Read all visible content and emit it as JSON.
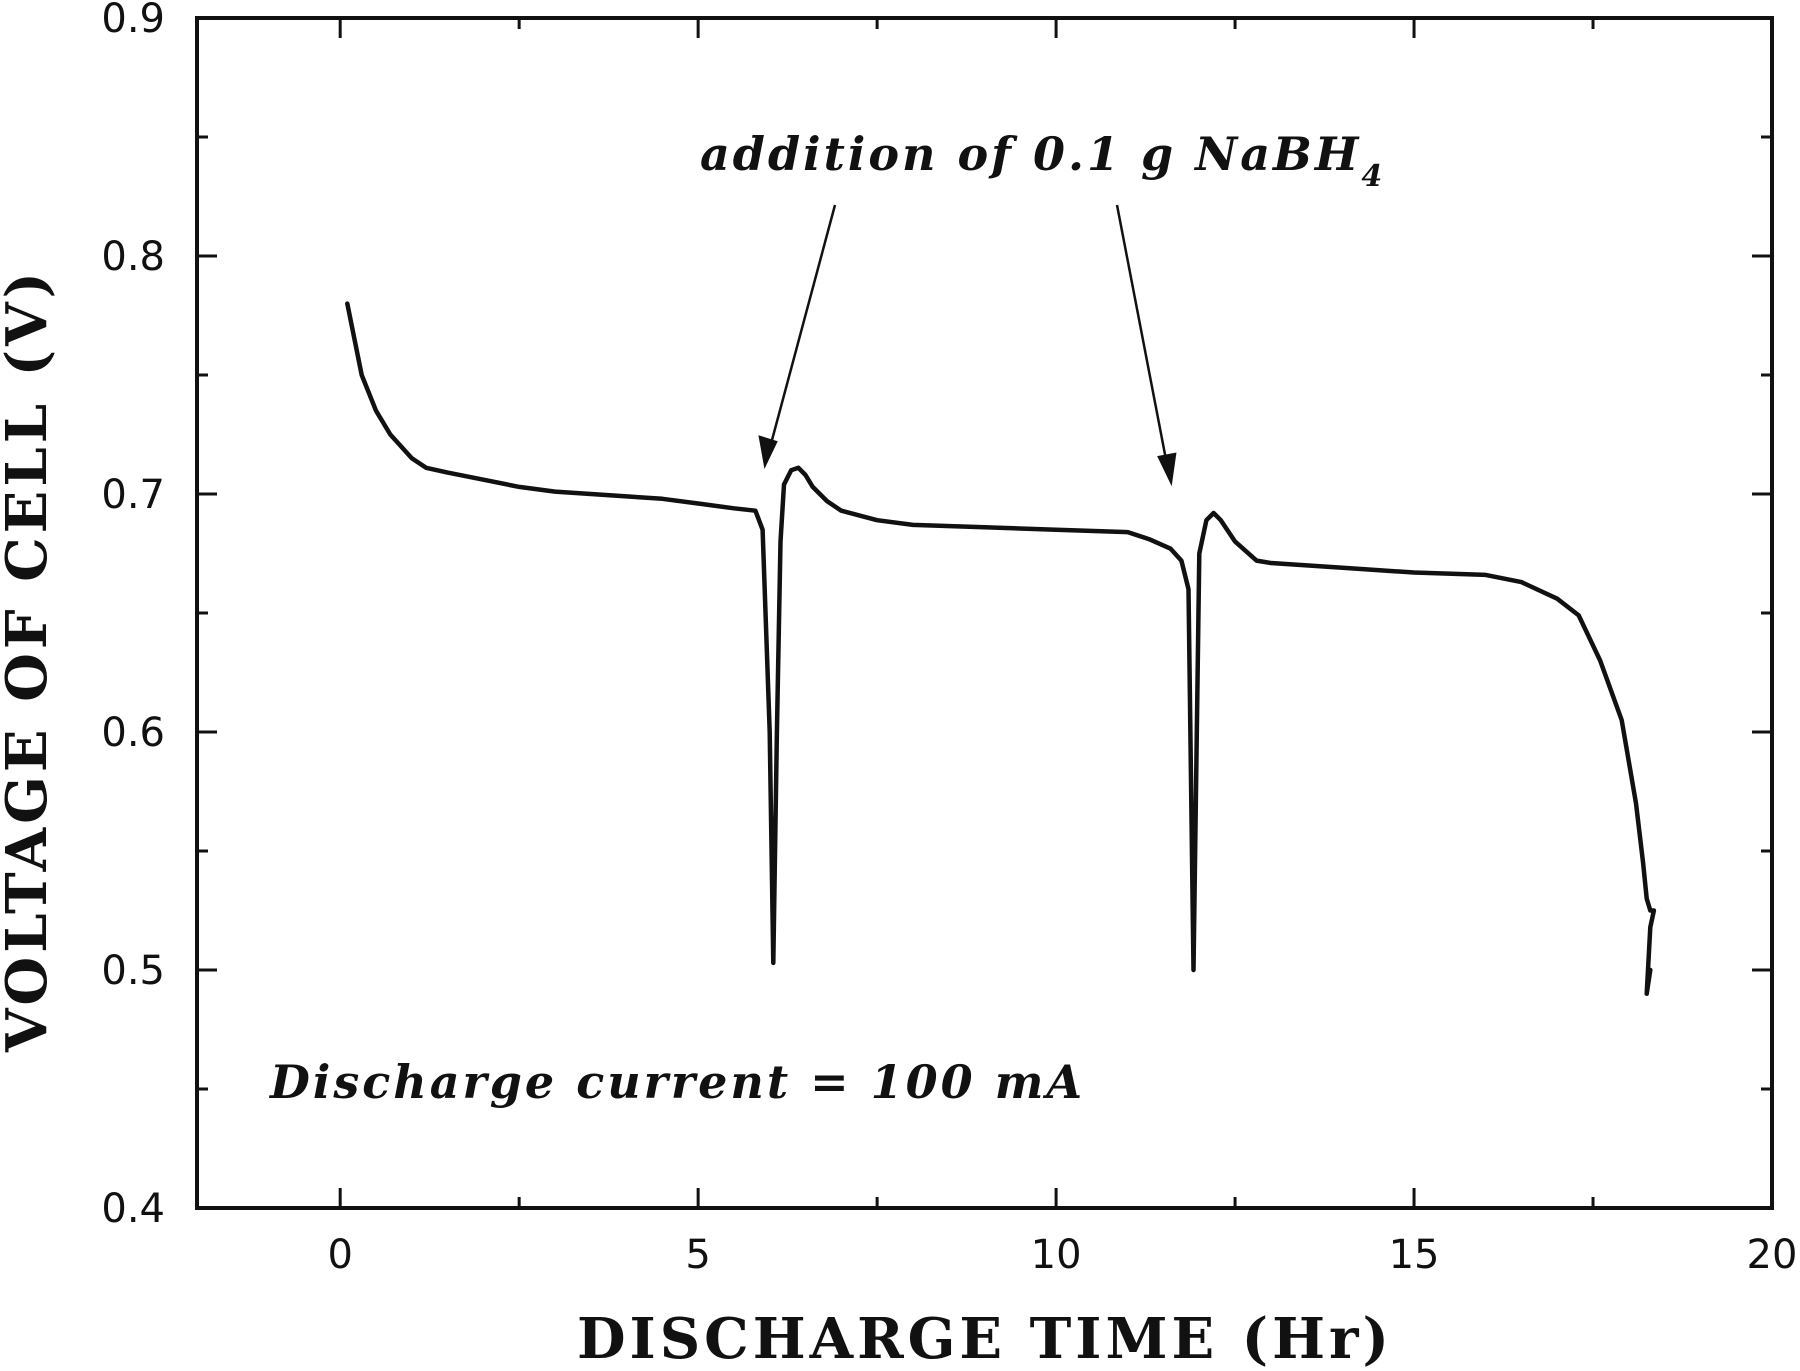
{
  "chart_data": {
    "type": "line",
    "xlabel": "DISCHARGE  TIME (Hr)",
    "ylabel": "VOLTAGE OF CELL (V)",
    "xlim": [
      -2,
      20
    ],
    "ylim": [
      0.4,
      0.9
    ],
    "xticks": [
      "0",
      "5",
      "10",
      "15",
      "20"
    ],
    "yticks": [
      "0.4",
      "0.5",
      "0.6",
      "0.7",
      "0.8",
      "0.9"
    ],
    "grid": false,
    "annotations": {
      "addition": "addition of 0.1 g NaBH",
      "addition_subscript": "4",
      "current": "Discharge current = 100 mA"
    },
    "series": [
      {
        "x": [
          0.1,
          0.2,
          0.3,
          0.5,
          0.7,
          1.0,
          1.2,
          1.5,
          2.0,
          2.5,
          3.0,
          3.5,
          4.0,
          4.5,
          5.0,
          5.5,
          5.8,
          5.9,
          6.0,
          6.05,
          6.1,
          6.15,
          6.2,
          6.3,
          6.4,
          6.5,
          6.6,
          6.8,
          7.0,
          7.5,
          8.0,
          9.0,
          10.0,
          11.0,
          11.3,
          11.6,
          11.75,
          11.85,
          11.92,
          12.0,
          12.1,
          12.2,
          12.3,
          12.5,
          12.8,
          13.0,
          14.0,
          15.0,
          16.0,
          16.5,
          17.0,
          17.3,
          17.6,
          17.9,
          18.1,
          18.2,
          18.25,
          18.3,
          18.35,
          18.3,
          18.25,
          18.3
        ],
        "y": [
          0.78,
          0.765,
          0.75,
          0.735,
          0.725,
          0.715,
          0.711,
          0.709,
          0.706,
          0.703,
          0.701,
          0.7,
          0.699,
          0.698,
          0.696,
          0.694,
          0.693,
          0.685,
          0.6,
          0.503,
          0.6,
          0.68,
          0.704,
          0.71,
          0.711,
          0.708,
          0.703,
          0.697,
          0.693,
          0.689,
          0.687,
          0.686,
          0.685,
          0.684,
          0.681,
          0.677,
          0.672,
          0.66,
          0.5,
          0.675,
          0.689,
          0.692,
          0.689,
          0.68,
          0.672,
          0.671,
          0.669,
          0.667,
          0.666,
          0.663,
          0.656,
          0.649,
          0.63,
          0.605,
          0.57,
          0.545,
          0.53,
          0.525,
          0.525,
          0.518,
          0.49,
          0.5
        ]
      }
    ]
  }
}
